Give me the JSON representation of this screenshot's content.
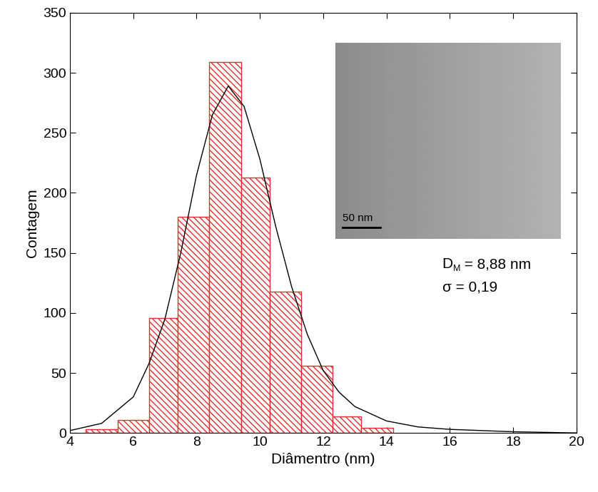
{
  "chart_data": {
    "type": "histogram",
    "x_label": "Diâmentro (nm)",
    "y_label": "Contagem",
    "bins": [
      4.5,
      5.5,
      6.5,
      7.4,
      8.4,
      9.4,
      10.3,
      11.3,
      12.3,
      13.2,
      14.2
    ],
    "counts": [
      3,
      11,
      96,
      180,
      309,
      213,
      118,
      56,
      14,
      4
    ],
    "color": "#e03030",
    "fit": {
      "type": "line",
      "color": "#000000",
      "x": [
        4,
        5,
        6,
        6.5,
        7,
        7.5,
        8,
        8.5,
        9,
        9.5,
        10,
        10.5,
        11,
        11.5,
        12,
        12.5,
        13,
        14,
        15,
        16,
        17,
        18,
        19,
        20
      ],
      "values": [
        2,
        8,
        30,
        58,
        95,
        150,
        215,
        265,
        289,
        272,
        228,
        172,
        122,
        82,
        52,
        34,
        22,
        10,
        5,
        3,
        2,
        1,
        0.5,
        0
      ]
    },
    "xlim": [
      4,
      20
    ],
    "xticks": [
      4,
      6,
      8,
      10,
      12,
      14,
      16,
      18,
      20
    ],
    "ylim": [
      0,
      350
    ],
    "yticks": [
      0,
      50,
      100,
      150,
      200,
      250,
      300,
      350
    ],
    "annotations": [
      {
        "base": "D",
        "subscript": "M",
        "text": " = 8,88 nm"
      },
      {
        "text": "σ = 0,19"
      }
    ],
    "inset": {
      "scale_bar": "50 nm"
    }
  }
}
